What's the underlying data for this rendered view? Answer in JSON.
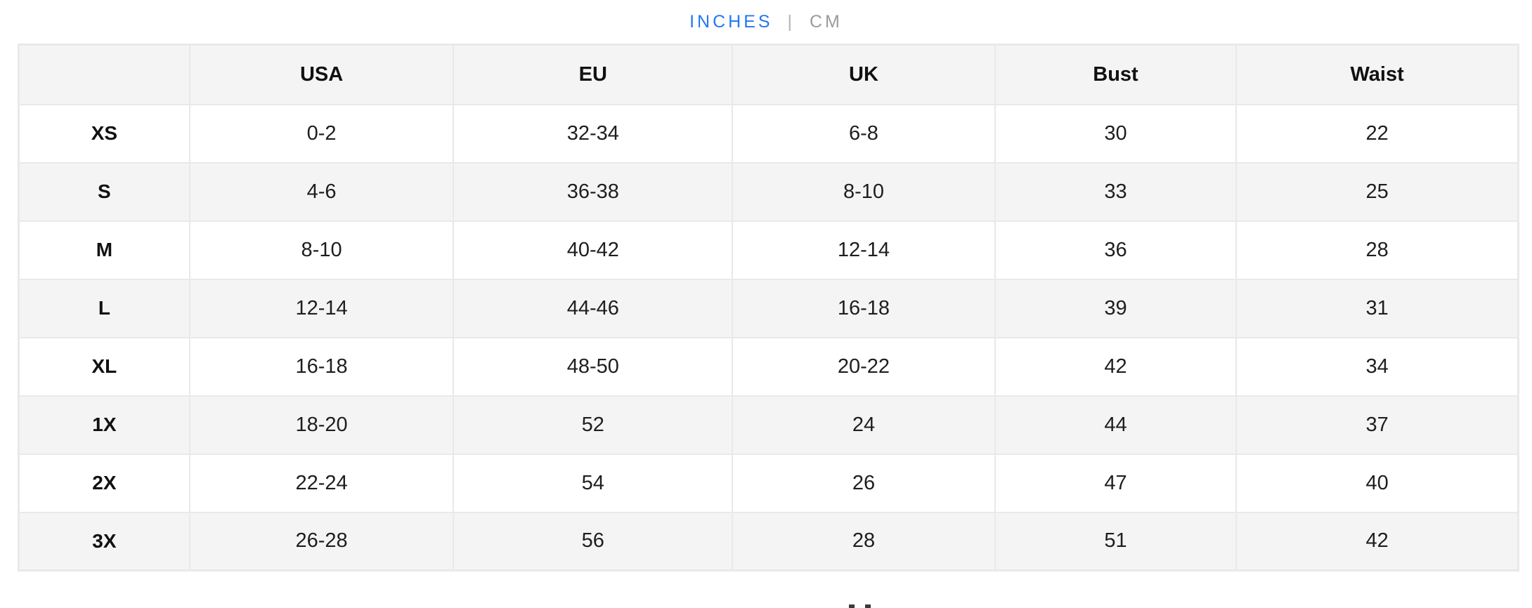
{
  "unit_toggle": {
    "options": [
      {
        "id": "inches",
        "label": "INCHES",
        "active": true
      },
      {
        "id": "cm",
        "label": "CM",
        "active": false
      }
    ],
    "separator": "|"
  },
  "size_chart": {
    "columns": [
      "",
      "USA",
      "EU",
      "UK",
      "Bust",
      "Waist"
    ],
    "rows": [
      {
        "size": "XS",
        "values": [
          "0-2",
          "32-34",
          "6-8",
          "30",
          "22"
        ]
      },
      {
        "size": "S",
        "values": [
          "4-6",
          "36-38",
          "8-10",
          "33",
          "25"
        ]
      },
      {
        "size": "M",
        "values": [
          "8-10",
          "40-42",
          "12-14",
          "36",
          "28"
        ]
      },
      {
        "size": "L",
        "values": [
          "12-14",
          "44-46",
          "16-18",
          "39",
          "31"
        ]
      },
      {
        "size": "XL",
        "values": [
          "16-18",
          "48-50",
          "20-22",
          "42",
          "34"
        ]
      },
      {
        "size": "1X",
        "values": [
          "18-20",
          "52",
          "24",
          "44",
          "37"
        ]
      },
      {
        "size": "2X",
        "values": [
          "22-24",
          "54",
          "26",
          "47",
          "40"
        ]
      },
      {
        "size": "3X",
        "values": [
          "26-28",
          "56",
          "28",
          "51",
          "42"
        ]
      }
    ]
  },
  "colors": {
    "accent_blue": "#2577f3",
    "muted_gray": "#9b9b9b",
    "row_stripe": "#f4f4f4",
    "table_border": "#e9e9e9"
  }
}
